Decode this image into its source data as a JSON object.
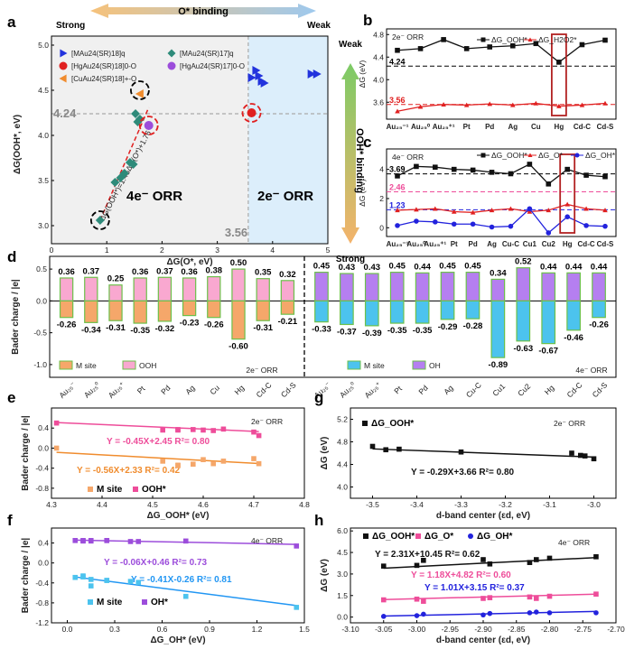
{
  "panels": {
    "a": "a",
    "b": "b",
    "c": "c",
    "d": "d",
    "e": "e",
    "f": "f",
    "g": "g",
    "h": "h"
  },
  "colors": {
    "red": "#e02020",
    "black": "#111111",
    "blue": "#2196f3",
    "pink": "#ee4d9a",
    "purple": "#9c4ddb",
    "orange": "#f08c2e",
    "teal": "#2e8b7a",
    "peach": "#f5a76a",
    "ltpink": "#f9a8d0",
    "cyan": "#4cc3ee",
    "lavender": "#b57ff0",
    "green": "#6cc04a",
    "lightblue": "#dceefb"
  },
  "chart_data": [
    {
      "id": "a",
      "type": "scatter",
      "title": "O* binding",
      "strong_label": "Strong",
      "weak_label": "Weak",
      "yaxis_binding": "OOH* binding",
      "y_weak": "Weak",
      "y_strong": "Strong",
      "xlabel": "ΔG(O*, eV)",
      "ylabel": "ΔG(OOH*, eV)",
      "xlim": [
        0,
        5
      ],
      "ylim": [
        2.8,
        5.1
      ],
      "xticks": [
        "0",
        "1",
        "2",
        "3",
        "4",
        "5"
      ],
      "yticks": [
        "3.0",
        "3.5",
        "4.0",
        "4.5",
        "5.0"
      ],
      "hline_value": "4.24",
      "vline_value": "3.56",
      "region_left": "4e⁻ ORR",
      "region_right": "2e⁻ ORR",
      "fit_equation": "ΔG(OOH*)=1.45ΔG(O*)+1.76",
      "legend": [
        "[MAu24(SR)18]q",
        "[MAu24(SR)17]q",
        "[HgAu24(SR)18]0-O",
        "[HgAu24(SR)17]0-O",
        "[CuAu24(SR)18]+-O"
      ],
      "series": [
        {
          "name": "[MAu24(SR)18]q",
          "marker": "triangle",
          "color": "#2233dd",
          "points": [
            [
              3.62,
              4.64
            ],
            [
              3.7,
              4.72
            ],
            [
              3.75,
              4.66
            ],
            [
              3.8,
              4.6
            ],
            [
              3.85,
              4.58
            ],
            [
              4.7,
              4.68
            ],
            [
              4.8,
              4.68
            ]
          ]
        },
        {
          "name": "[MAu24(SR)17]q",
          "marker": "diamond",
          "color": "#2e8b7a",
          "points": [
            [
              0.88,
              3.06
            ],
            [
              1.15,
              3.48
            ],
            [
              1.25,
              3.53
            ],
            [
              1.32,
              3.58
            ],
            [
              1.42,
              3.7
            ],
            [
              1.48,
              3.68
            ],
            [
              1.52,
              4.24
            ],
            [
              1.56,
              4.15
            ],
            [
              1.6,
              4.18
            ]
          ]
        },
        {
          "name": "[HgAu24(SR)18]0-O",
          "marker": "circle",
          "color": "#e02020",
          "points": [
            [
              3.62,
              4.25
            ]
          ]
        },
        {
          "name": "[HgAu24(SR)17]0-O",
          "marker": "circle",
          "color": "#9c4ddb",
          "points": [
            [
              1.76,
              4.11
            ]
          ]
        },
        {
          "name": "[CuAu24(SR)18]+-O",
          "marker": "triangle-left",
          "color": "#f08c2e",
          "points": [
            [
              1.6,
              4.46
            ]
          ]
        }
      ]
    },
    {
      "id": "b",
      "type": "line",
      "title": "2e⁻ ORR",
      "ylabel": "ΔG (eV)",
      "categories": [
        "Au₂₅⁻¹",
        "Au₂₅⁰",
        "Au₂₅⁺¹",
        "Pt",
        "Pd",
        "Ag",
        "Cu",
        "Hg",
        "Cd-C",
        "Cd-S"
      ],
      "ylim": [
        3.3,
        4.9
      ],
      "yticks": [
        "3.6",
        "4.0",
        "4.4",
        "4.8"
      ],
      "ref_lines": [
        {
          "value": 4.24,
          "label": "4.24"
        },
        {
          "value": 3.56,
          "label": "3.56"
        }
      ],
      "series": [
        {
          "name": "ΔG_OOH*",
          "color": "#111111",
          "values": [
            4.52,
            4.55,
            4.71,
            4.55,
            4.58,
            4.6,
            4.64,
            4.31,
            4.62,
            4.7
          ]
        },
        {
          "name": "ΔG_H2O2*",
          "color": "#e02020",
          "values": [
            3.44,
            3.52,
            3.56,
            3.55,
            3.57,
            3.55,
            3.58,
            3.53,
            3.55,
            3.58
          ]
        }
      ]
    },
    {
      "id": "c",
      "type": "line",
      "title": "4e⁻ ORR",
      "ylabel": "ΔG (eV)",
      "categories": [
        "Au₂₅⁻¹",
        "Au₂₅⁰",
        "Au₂₅⁺¹",
        "Pt",
        "Pd",
        "Ag",
        "Cu-C",
        "Cu1",
        "Cu2",
        "Hg",
        "Cd-C",
        "Cd-S"
      ],
      "ylim": [
        -0.6,
        5.4
      ],
      "yticks": [
        "0",
        "2",
        "4"
      ],
      "ref_lines": [
        {
          "value": 3.69,
          "label": "3.69"
        },
        {
          "value": 2.46,
          "label": "2.46"
        },
        {
          "value": 1.23,
          "label": "1.23"
        }
      ],
      "series": [
        {
          "name": "ΔG_OOH*",
          "color": "#111111",
          "values": [
            3.55,
            4.2,
            4.15,
            4.0,
            3.95,
            3.8,
            3.7,
            4.35,
            3.0,
            4.0,
            3.6,
            3.5
          ]
        },
        {
          "name": "ΔG_O*",
          "color": "#e02020",
          "values": [
            1.2,
            1.25,
            1.3,
            1.1,
            1.05,
            1.2,
            1.3,
            1.1,
            1.2,
            1.6,
            1.3,
            1.2
          ]
        },
        {
          "name": "ΔG_OH*",
          "color": "#2222dd",
          "values": [
            0.15,
            0.45,
            0.4,
            0.25,
            0.25,
            0.05,
            0.1,
            1.3,
            -0.35,
            0.75,
            0.15,
            0.1
          ]
        }
      ]
    },
    {
      "id": "d",
      "type": "bar",
      "ylabel": "Bader charge / |e|",
      "ylim": [
        -1.2,
        0.7
      ],
      "yticks": [
        "-1.0",
        "-0.5",
        "0.0",
        "0.5"
      ],
      "left_label": "2e⁻ ORR",
      "right_label": "4e⁻ ORR",
      "legend_left": [
        "M site",
        "OOH"
      ],
      "legend_right": [
        "M site",
        "OH"
      ],
      "left_categories": [
        "Au₂₅⁻",
        "Au₂₅⁰",
        "Au₂₅⁺",
        "Pt",
        "Pd",
        "Ag",
        "Cu",
        "Hg",
        "Cd-C",
        "Cd-S"
      ],
      "left_pos": [
        0.36,
        0.37,
        0.25,
        0.36,
        0.37,
        0.36,
        0.38,
        0.5,
        0.35,
        0.32
      ],
      "left_neg": [
        -0.26,
        -0.34,
        -0.31,
        -0.35,
        -0.32,
        -0.23,
        -0.26,
        -0.6,
        -0.31,
        -0.21
      ],
      "right_categories": [
        "Au₂₅⁻",
        "Au₂₅⁰",
        "Au₂₅⁺",
        "Pt",
        "Pd",
        "Ag",
        "Cu-C",
        "Cu1",
        "Cu2",
        "Hg",
        "Cd-C",
        "Cd-S"
      ],
      "right_pos": [
        0.45,
        0.43,
        0.43,
        0.45,
        0.44,
        0.45,
        0.45,
        0.34,
        0.52,
        0.44,
        0.44,
        0.44
      ],
      "right_neg": [
        -0.33,
        -0.37,
        -0.39,
        -0.35,
        -0.35,
        -0.29,
        -0.28,
        -0.89,
        -0.63,
        -0.67,
        -0.46,
        -0.26
      ]
    },
    {
      "id": "e",
      "type": "scatter",
      "title": "2e⁻ ORR",
      "xlabel": "ΔG_OOH* (eV)",
      "ylabel": "Bader charge / |e|",
      "xlim": [
        4.3,
        4.8
      ],
      "ylim": [
        -1.0,
        0.8
      ],
      "xticks": [
        "4.3",
        "4.4",
        "4.5",
        "4.6",
        "4.7",
        "4.8"
      ],
      "yticks": [
        "-0.8",
        "-0.4",
        "0.0",
        "0.4"
      ],
      "legend": [
        "M site",
        "OOH*"
      ],
      "fits": [
        {
          "label": "Y = -0.45X+2.45  R²= 0.80",
          "color": "#ee4d9a",
          "slope": -0.45,
          "intercept": 2.45
        },
        {
          "label": "Y = -0.56X+2.33  R²= 0.42",
          "color": "#f08c2e",
          "slope": -0.56,
          "intercept": 2.33
        }
      ],
      "series": [
        {
          "name": "OOH*",
          "color": "#ee4d9a",
          "x": [
            4.31,
            4.52,
            4.55,
            4.55,
            4.58,
            4.6,
            4.62,
            4.64,
            4.7,
            4.71
          ],
          "y": [
            0.5,
            0.36,
            0.37,
            0.36,
            0.37,
            0.36,
            0.35,
            0.38,
            0.32,
            0.25
          ]
        },
        {
          "name": "M site",
          "color": "#f5a76a",
          "x": [
            4.31,
            4.52,
            4.55,
            4.55,
            4.58,
            4.6,
            4.62,
            4.64,
            4.7,
            4.71
          ],
          "y": [
            0.0,
            -0.26,
            -0.34,
            -0.35,
            -0.32,
            -0.23,
            -0.31,
            -0.26,
            -0.21,
            -0.31
          ]
        }
      ]
    },
    {
      "id": "f",
      "type": "scatter",
      "title": "4e⁻ ORR",
      "xlabel": "ΔG_OH* (eV)",
      "ylabel": "Bader charge / |e|",
      "xlim": [
        -0.1,
        1.5
      ],
      "ylim": [
        -1.2,
        0.7
      ],
      "xticks": [
        "0.0",
        "0.3",
        "0.6",
        "0.9",
        "1.2",
        "1.5"
      ],
      "yticks": [
        "-1.2",
        "-0.8",
        "-0.4",
        "0.0",
        "0.4"
      ],
      "legend": [
        "M site",
        "OH*"
      ],
      "fits": [
        {
          "label": "Y = -0.06X+0.46  R²= 0.73",
          "color": "#9c4ddb",
          "slope": -0.06,
          "intercept": 0.46
        },
        {
          "label": "Y = -0.41X-0.26  R²= 0.81",
          "color": "#2196f3",
          "slope": -0.41,
          "intercept": -0.26
        }
      ],
      "series": [
        {
          "name": "OH*",
          "color": "#9c4ddb",
          "x": [
            0.05,
            0.1,
            0.1,
            0.15,
            0.15,
            0.25,
            0.25,
            0.4,
            0.45,
            0.75,
            1.45
          ],
          "y": [
            0.45,
            0.44,
            0.45,
            0.44,
            0.45,
            0.45,
            0.45,
            0.43,
            0.43,
            0.44,
            0.34
          ]
        },
        {
          "name": "M site",
          "color": "#4cc3ee",
          "x": [
            0.05,
            0.1,
            0.1,
            0.15,
            0.15,
            0.25,
            0.25,
            0.4,
            0.45,
            0.75,
            1.45
          ],
          "y": [
            -0.29,
            -0.28,
            -0.26,
            -0.33,
            -0.46,
            -0.35,
            -0.35,
            -0.37,
            -0.39,
            -0.67,
            -0.89
          ]
        }
      ]
    },
    {
      "id": "g",
      "type": "scatter",
      "title": "2e⁻ ORR",
      "xlabel": "d-band center (εd, eV)",
      "ylabel": "ΔG (eV)",
      "xlim": [
        -3.55,
        -2.95
      ],
      "ylim": [
        3.8,
        5.4
      ],
      "xticks": [
        "-3.5",
        "-3.4",
        "-3.3",
        "-3.2",
        "-3.1",
        "-3.0"
      ],
      "yticks": [
        "4.0",
        "4.4",
        "4.8",
        "5.2"
      ],
      "legend": [
        "ΔG_OOH*"
      ],
      "fits": [
        {
          "label": "Y = -0.29X+3.66  R²= 0.80",
          "color": "#111111",
          "slope": -0.29,
          "intercept": 3.66
        }
      ],
      "series": [
        {
          "name": "ΔG_OOH*",
          "color": "#111111",
          "x": [
            -3.5,
            -3.47,
            -3.44,
            -3.3,
            -3.05,
            -3.03,
            -3.02,
            -3.0
          ],
          "y": [
            4.72,
            4.66,
            4.67,
            4.62,
            4.6,
            4.56,
            4.55,
            4.5
          ]
        }
      ]
    },
    {
      "id": "h",
      "type": "scatter",
      "title": "4e⁻ ORR",
      "xlabel": "d-band center (εd, eV)",
      "ylabel": "ΔG (eV)",
      "xlim": [
        -3.1,
        -2.7
      ],
      "ylim": [
        -0.4,
        6.2
      ],
      "xticks": [
        "-3.10",
        "-3.05",
        "-3.00",
        "-2.95",
        "-2.90",
        "-2.85",
        "-2.80",
        "-2.75",
        "-2.70"
      ],
      "yticks": [
        "0.0",
        "1.5",
        "3.0",
        "4.5",
        "6.0"
      ],
      "legend": [
        "ΔG_OOH*",
        "ΔG_O*",
        "ΔG_OH*"
      ],
      "fits": [
        {
          "label": "Y = 2.31X+10.45  R²= 0.62",
          "color": "#111111",
          "slope": 2.31,
          "intercept": 10.45
        },
        {
          "label": "Y = 1.18X+4.82  R²= 0.60",
          "color": "#ee4d9a",
          "slope": 1.18,
          "intercept": 4.82
        },
        {
          "label": "Y = 1.01X+3.15  R²= 0.37",
          "color": "#2222dd",
          "slope": 1.01,
          "intercept": 3.15
        }
      ],
      "series": [
        {
          "name": "ΔG_OOH*",
          "color": "#111111",
          "x": [
            -3.05,
            -3.0,
            -2.99,
            -2.9,
            -2.89,
            -2.83,
            -2.82,
            -2.8,
            -2.73
          ],
          "y": [
            3.55,
            3.6,
            3.95,
            4.0,
            3.7,
            3.8,
            4.0,
            4.1,
            4.2
          ]
        },
        {
          "name": "ΔG_O*",
          "color": "#ee4d9a",
          "x": [
            -3.05,
            -3.0,
            -2.99,
            -2.9,
            -2.89,
            -2.83,
            -2.82,
            -2.8,
            -2.73
          ],
          "y": [
            1.2,
            1.25,
            1.1,
            1.3,
            1.35,
            1.4,
            1.3,
            1.45,
            1.6
          ]
        },
        {
          "name": "ΔG_OH*",
          "color": "#2222dd",
          "x": [
            -3.05,
            -3.0,
            -2.99,
            -2.9,
            -2.89,
            -2.83,
            -2.82,
            -2.8,
            -2.73
          ],
          "y": [
            0.05,
            0.1,
            0.2,
            0.15,
            0.25,
            0.3,
            0.35,
            0.3,
            0.3
          ]
        }
      ]
    }
  ]
}
